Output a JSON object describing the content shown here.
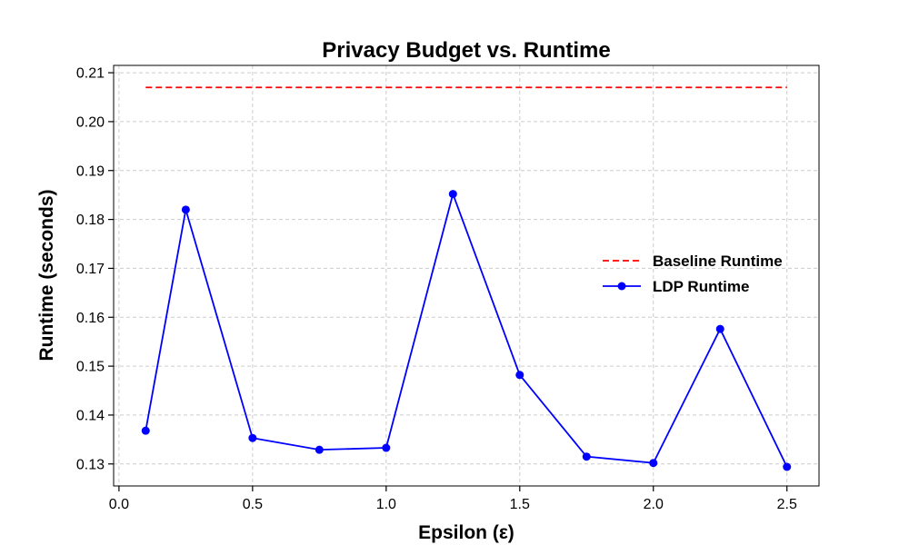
{
  "chart_data": {
    "type": "line",
    "title": "Privacy Budget vs. Runtime",
    "xlabel": "Epsilon (ε)",
    "ylabel": "Runtime (seconds)",
    "xlim": [
      -0.02,
      2.62
    ],
    "ylim": [
      0.1255,
      0.2115
    ],
    "x_ticks": [
      0.0,
      0.5,
      1.0,
      1.5,
      2.0,
      2.5
    ],
    "x_tick_labels": [
      "0.0",
      "0.5",
      "1.0",
      "1.5",
      "2.0",
      "2.5"
    ],
    "y_ticks": [
      0.13,
      0.14,
      0.15,
      0.16,
      0.17,
      0.18,
      0.19,
      0.2,
      0.21
    ],
    "y_tick_labels": [
      "0.13",
      "0.14",
      "0.15",
      "0.16",
      "0.17",
      "0.18",
      "0.19",
      "0.20",
      "0.21"
    ],
    "grid": true,
    "legend_position": "center-right",
    "series": [
      {
        "name": "Baseline Runtime",
        "style": "dashed",
        "color": "#ff0000",
        "x": [
          0.1,
          2.5
        ],
        "values": [
          0.207,
          0.207
        ]
      },
      {
        "name": "LDP Runtime",
        "style": "solid-with-markers",
        "color": "#0000ff",
        "x": [
          0.1,
          0.25,
          0.5,
          0.75,
          1.0,
          1.25,
          1.5,
          1.75,
          2.0,
          2.25,
          2.5
        ],
        "values": [
          0.1368,
          0.182,
          0.1353,
          0.1329,
          0.1333,
          0.1852,
          0.1482,
          0.1315,
          0.1302,
          0.1576,
          0.1294
        ]
      }
    ]
  }
}
